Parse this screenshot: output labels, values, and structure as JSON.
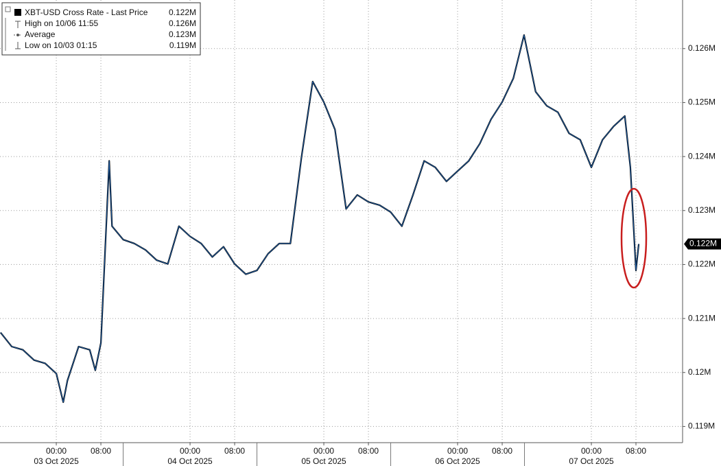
{
  "chart_data": {
    "type": "line",
    "legend": [
      {
        "name": "XBT-USD Cross Rate - Last Price",
        "value_label": "0.122M"
      },
      {
        "name": "High on 10/06 11:55",
        "value_label": "0.126M"
      },
      {
        "name": "Average",
        "value_label": "0.123M"
      },
      {
        "name": "Low on 10/03 01:15",
        "value_label": "0.119M"
      }
    ],
    "last_price_label": "0.122M",
    "x": [
      "2025-10-02T14:00",
      "2025-10-02T16:00",
      "2025-10-02T18:00",
      "2025-10-02T20:00",
      "2025-10-02T22:00",
      "2025-10-03T00:00",
      "2025-10-03T01:15",
      "2025-10-03T02:00",
      "2025-10-03T04:00",
      "2025-10-03T06:00",
      "2025-10-03T07:00",
      "2025-10-03T08:00",
      "2025-10-03T09:30",
      "2025-10-03T10:00",
      "2025-10-03T12:00",
      "2025-10-03T14:00",
      "2025-10-03T16:00",
      "2025-10-03T18:00",
      "2025-10-03T20:00",
      "2025-10-03T22:00",
      "2025-10-04T00:00",
      "2025-10-04T02:00",
      "2025-10-04T04:00",
      "2025-10-04T06:00",
      "2025-10-04T08:00",
      "2025-10-04T10:00",
      "2025-10-04T12:00",
      "2025-10-04T14:00",
      "2025-10-04T16:00",
      "2025-10-04T18:00",
      "2025-10-04T20:00",
      "2025-10-04T22:00",
      "2025-10-05T00:00",
      "2025-10-05T02:00",
      "2025-10-05T04:00",
      "2025-10-05T06:00",
      "2025-10-05T08:00",
      "2025-10-05T10:00",
      "2025-10-05T12:00",
      "2025-10-05T14:00",
      "2025-10-05T16:00",
      "2025-10-05T18:00",
      "2025-10-05T20:00",
      "2025-10-05T22:00",
      "2025-10-06T00:00",
      "2025-10-06T02:00",
      "2025-10-06T04:00",
      "2025-10-06T06:00",
      "2025-10-06T08:00",
      "2025-10-06T10:00",
      "2025-10-06T11:55",
      "2025-10-06T14:00",
      "2025-10-06T16:00",
      "2025-10-06T18:00",
      "2025-10-06T20:00",
      "2025-10-06T22:00",
      "2025-10-07T00:00",
      "2025-10-07T02:00",
      "2025-10-07T04:00",
      "2025-10-07T06:00",
      "2025-10-07T07:00",
      "2025-10-07T07:30",
      "2025-10-07T08:00",
      "2025-10-07T08:30"
    ],
    "series": [
      {
        "name": "XBT-USD Cross Rate - Last Price",
        "color": "#1f5fa8",
        "values": [
          0.12074,
          0.12048,
          0.12042,
          0.12023,
          0.12017,
          0.11998,
          0.11945,
          0.11985,
          0.12048,
          0.12042,
          0.12004,
          0.12055,
          0.12392,
          0.12271,
          0.12246,
          0.12239,
          0.12227,
          0.12208,
          0.12201,
          0.12271,
          0.12252,
          0.12239,
          0.12214,
          0.12233,
          0.12201,
          0.12182,
          0.12189,
          0.1222,
          0.12239,
          0.12239,
          0.12399,
          0.12539,
          0.12501,
          0.1245,
          0.12303,
          0.12329,
          0.12316,
          0.1231,
          0.12297,
          0.12271,
          0.12329,
          0.12392,
          0.1238,
          0.12354,
          0.12373,
          0.12392,
          0.12424,
          0.12469,
          0.12501,
          0.12545,
          0.12625,
          0.1252,
          0.12494,
          0.12482,
          0.12443,
          0.12431,
          0.1238,
          0.12431,
          0.12456,
          0.12475,
          0.1238,
          0.12284,
          0.12189,
          0.12238
        ]
      }
    ],
    "xlim": [
      "2025-10-02T13:54",
      "2025-10-07T16:22"
    ],
    "ylim": [
      0.1187,
      0.1269
    ],
    "yticks": [
      {
        "value": 0.119,
        "label": "0.119M"
      },
      {
        "value": 0.12,
        "label": "0.12M"
      },
      {
        "value": 0.121,
        "label": "0.121M"
      },
      {
        "value": 0.122,
        "label": "0.122M"
      },
      {
        "value": 0.123,
        "label": "0.123M"
      },
      {
        "value": 0.124,
        "label": "0.124M"
      },
      {
        "value": 0.125,
        "label": "0.125M"
      },
      {
        "value": 0.126,
        "label": "0.126M"
      }
    ],
    "xticks": [
      {
        "value": "2025-10-03T00:00",
        "label": "00:00"
      },
      {
        "value": "2025-10-03T08:00",
        "label": "08:00"
      },
      {
        "value": "2025-10-04T00:00",
        "label": "00:00"
      },
      {
        "value": "2025-10-04T08:00",
        "label": "08:00"
      },
      {
        "value": "2025-10-05T00:00",
        "label": "00:00"
      },
      {
        "value": "2025-10-05T08:00",
        "label": "08:00"
      },
      {
        "value": "2025-10-06T00:00",
        "label": "00:00"
      },
      {
        "value": "2025-10-06T08:00",
        "label": "08:00"
      },
      {
        "value": "2025-10-07T00:00",
        "label": "00:00"
      },
      {
        "value": "2025-10-07T08:00",
        "label": "08:00"
      }
    ],
    "date_labels": [
      {
        "value": "2025-10-03T00:00",
        "label": "03 Oct 2025"
      },
      {
        "value": "2025-10-04T00:00",
        "label": "04 Oct 2025"
      },
      {
        "value": "2025-10-05T00:00",
        "label": "05 Oct 2025"
      },
      {
        "value": "2025-10-06T00:00",
        "label": "06 Oct 2025"
      },
      {
        "value": "2025-10-07T00:00",
        "label": "07 Oct 2025"
      }
    ],
    "grid": true
  }
}
